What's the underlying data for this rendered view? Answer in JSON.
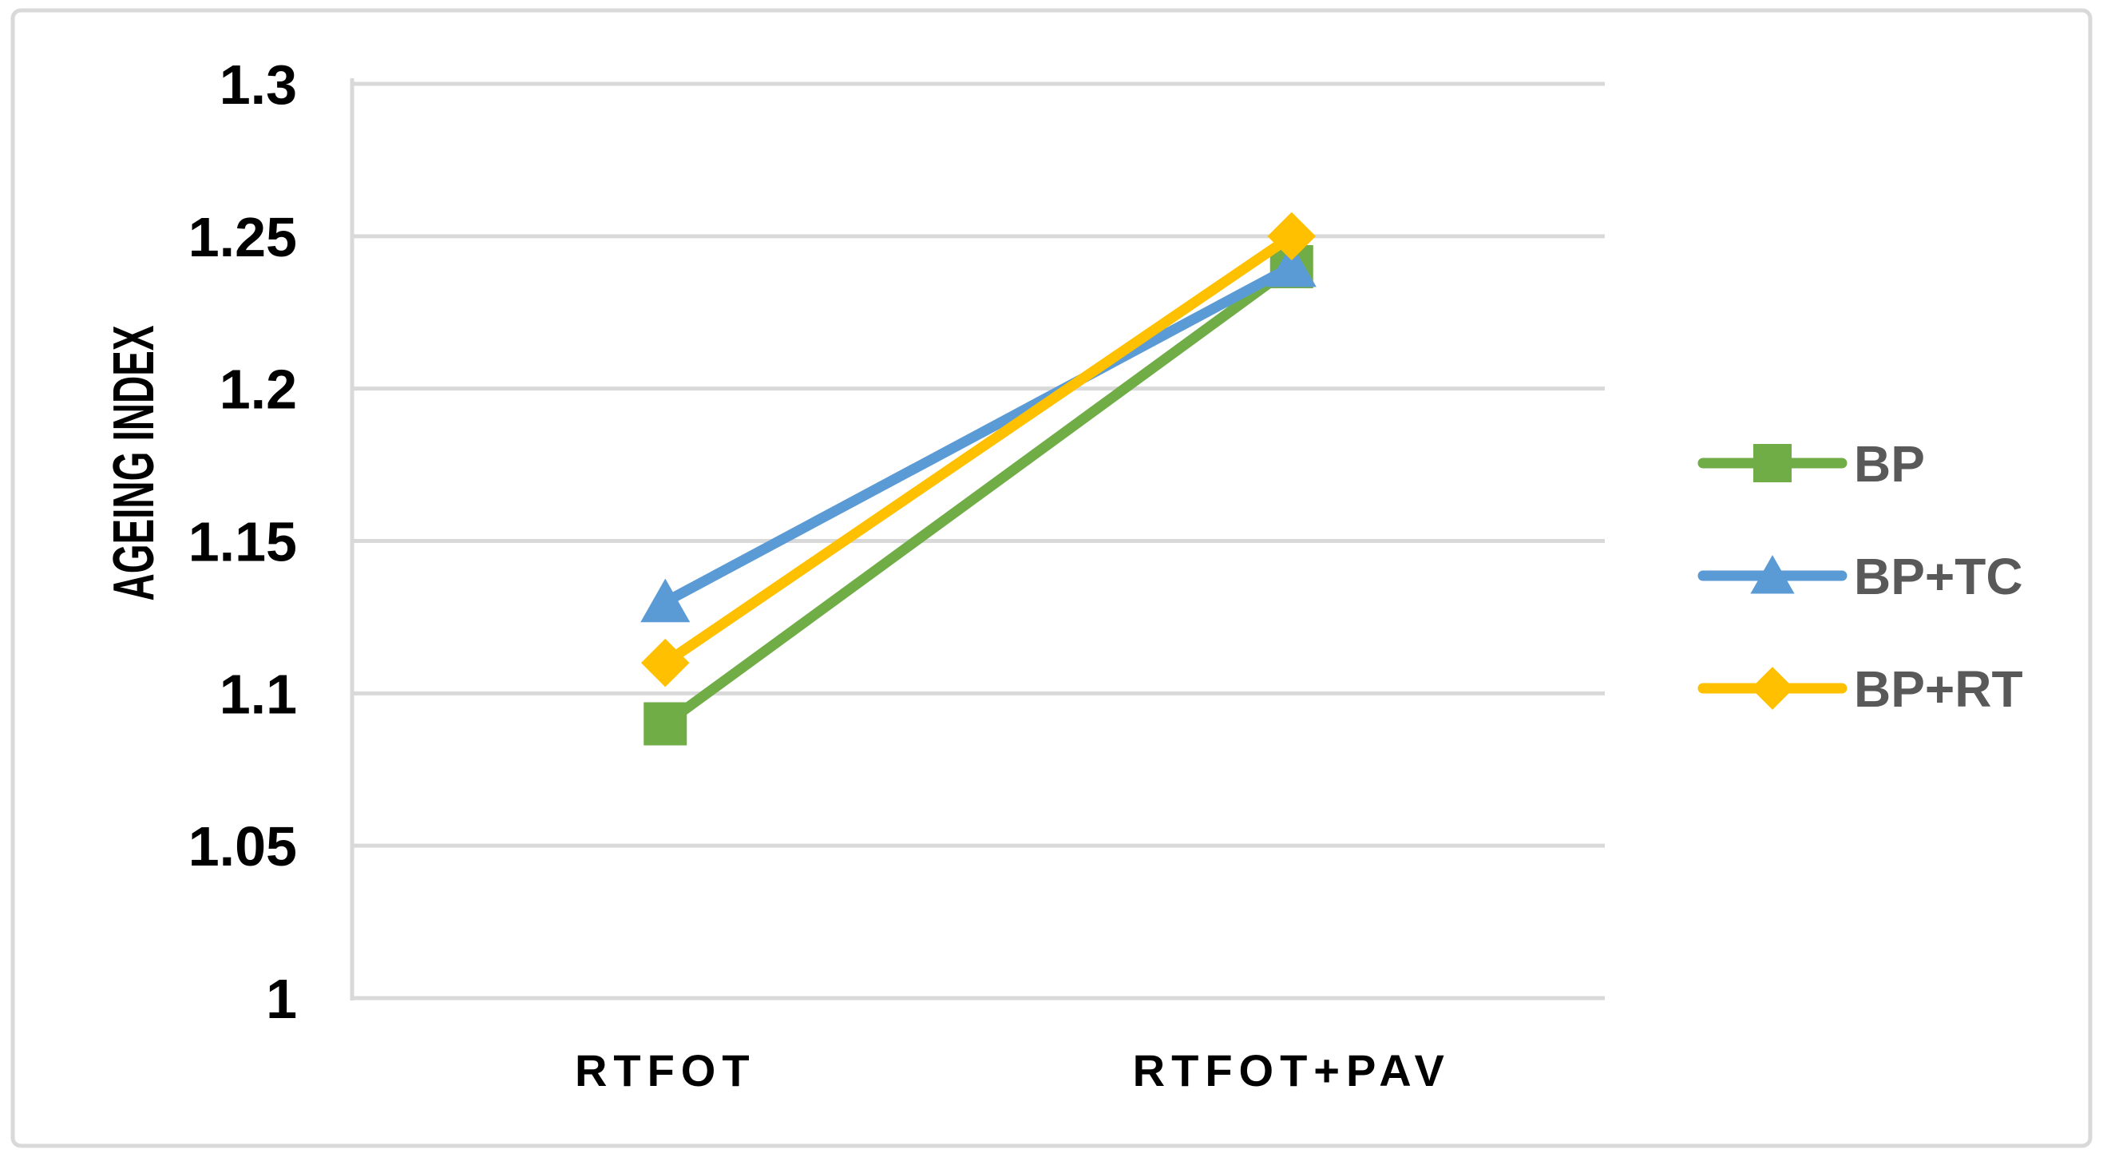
{
  "figure": {
    "background_color": "#FFFFFF",
    "border_color": "#D9D9D9"
  },
  "chart_data": {
    "type": "line",
    "title": "",
    "categories": [
      "RTFOT",
      "RTFOT+PAV"
    ],
    "series": [
      {
        "name": "BP",
        "color": "#70AD47",
        "marker": "square",
        "values": [
          1.09,
          1.24
        ]
      },
      {
        "name": "BP+TC",
        "color": "#5B9BD5",
        "marker": "triangle",
        "values": [
          1.13,
          1.24
        ]
      },
      {
        "name": "BP+RT",
        "color": "#FFC000",
        "marker": "diamond",
        "values": [
          1.11,
          1.25
        ]
      }
    ],
    "xlabel": "",
    "ylabel": "AGEING INDEX",
    "ylim": [
      1.0,
      1.3
    ],
    "yticks": [
      1,
      1.05,
      1.1,
      1.15,
      1.2,
      1.25,
      1.3
    ],
    "ytick_labels": [
      "1",
      "1.05",
      "1.1",
      "1.15",
      "1.2",
      "1.25",
      "1.3"
    ],
    "grid": true,
    "gridline_color": "#D9D9D9",
    "axis_line_color": "#D9D9D9",
    "tick_label_color": "#000000",
    "legend_position": "right",
    "legend_text_color": "#595959"
  }
}
